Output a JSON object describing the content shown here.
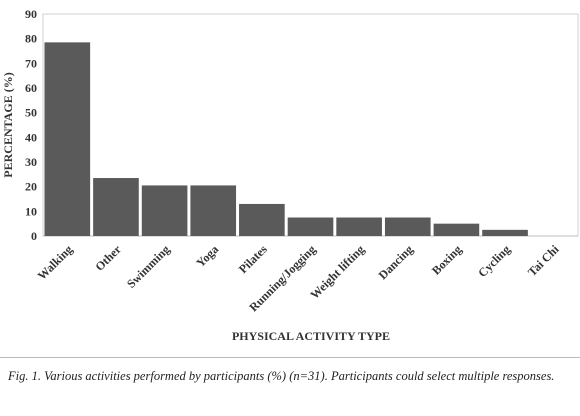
{
  "chart_data": {
    "type": "bar",
    "categories": [
      "Walking",
      "Other",
      "Swimming",
      "Yoga",
      "Pilates",
      "Running/Jogging",
      "Weight lifting",
      "Dancing",
      "Boxing",
      "Cycling",
      "Tai Chi"
    ],
    "values": [
      78.5,
      23.5,
      20.5,
      20.5,
      13,
      7.5,
      7.5,
      7.5,
      5,
      2.5,
      0
    ],
    "ylabel": "PERCENTAGE (%)",
    "xlabel": "PHYSICAL ACTIVITY TYPE",
    "ylim": [
      0,
      90
    ],
    "yticks": [
      0,
      10,
      20,
      30,
      40,
      50,
      60,
      70,
      80,
      90
    ],
    "bar_color": "#5a5a5a",
    "grid": false
  },
  "caption": {
    "label": "Fig. 1.",
    "text": "Various activities performed by participants (%) (n=31). Participants could select multiple responses."
  }
}
